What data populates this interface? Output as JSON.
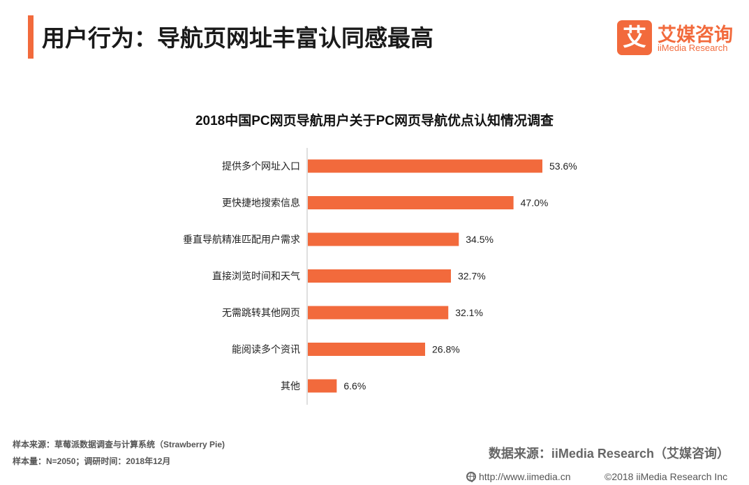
{
  "header": {
    "title": "用户行为：导航页网址丰富认同感最高"
  },
  "logo": {
    "mark": "艾",
    "name_cn": "艾媒咨询",
    "name_en": "iiMedia Research"
  },
  "colors": {
    "accent": "#f26a3c",
    "bar": "#f26a3c"
  },
  "chart_data": {
    "type": "bar",
    "orientation": "horizontal",
    "title": "2018中国PC网页导航用户关于PC网页导航优点认知情况调查",
    "categories": [
      "提供多个网址入口",
      "更快捷地搜索信息",
      "垂直导航精准匹配用户需求",
      "直接浏览时间和天气",
      "无需跳转其他网页",
      "能阅读多个资讯",
      "其他"
    ],
    "values": [
      53.6,
      47.0,
      34.5,
      32.7,
      32.1,
      26.8,
      6.6
    ],
    "value_labels": [
      "53.6%",
      "47.0%",
      "34.5%",
      "32.7%",
      "32.1%",
      "26.8%",
      "6.6%"
    ],
    "unit": "%",
    "xlim": [
      0,
      60
    ],
    "xlabel": "",
    "ylabel": "",
    "grid": false,
    "legend": "none"
  },
  "footer": {
    "sample_source": "样本来源：草莓派数据调查与计算系统（Strawberry Pie)",
    "sample_size": "样本量：N=2050；调研时间：2018年12月",
    "data_source": "数据来源：iiMedia Research（艾媒咨询）",
    "url": "http://www.iimedia.cn",
    "copyright": "©2018  iiMedia Research  Inc"
  }
}
